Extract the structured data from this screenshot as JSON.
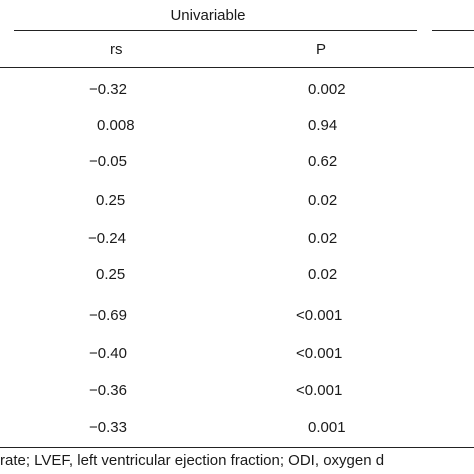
{
  "table": {
    "group_label": "Univariable",
    "columns": {
      "rs": "rs",
      "p": "P"
    },
    "rows": [
      {
        "rs": "−0.32",
        "p": "0.002"
      },
      {
        "rs": "0.008",
        "p": "0.94"
      },
      {
        "rs": "−0.05",
        "p": "0.62"
      },
      {
        "rs": "0.25",
        "p": "0.02"
      },
      {
        "rs": "−0.24",
        "p": "0.02"
      },
      {
        "rs": "0.25",
        "p": "0.02"
      },
      {
        "rs": "−0.69",
        "p": "<0.001"
      },
      {
        "rs": "−0.40",
        "p": "<0.001"
      },
      {
        "rs": "−0.36",
        "p": "<0.001"
      },
      {
        "rs": "−0.33",
        "p": "0.001"
      }
    ],
    "footnote": "rate; LVEF, left ventricular ejection fraction; ODI, oxygen d"
  }
}
